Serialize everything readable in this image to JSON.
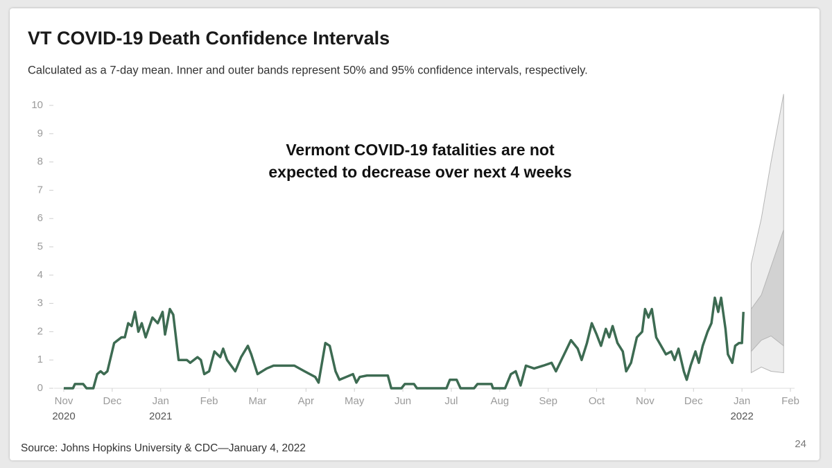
{
  "chart_data": {
    "type": "line",
    "title": "VT COVID-19 Death Confidence Intervals",
    "subtitle": "Calculated as a 7-day mean. Inner and outer bands represent 50% and 95% confidence intervals, respectively.",
    "annotation": [
      "Vermont COVID-19 fatalities are not",
      "expected to decrease over next 4 weeks"
    ],
    "source": "Source: Johns Hopkins University & CDC—January 4, 2022",
    "page_number": "24",
    "xlim": [
      0,
      15
    ],
    "xticks": [
      {
        "value": 0,
        "label": "Nov\n2020"
      },
      {
        "value": 1,
        "label": "Dec"
      },
      {
        "value": 2,
        "label": "Jan\n2021"
      },
      {
        "value": 3,
        "label": "Feb"
      },
      {
        "value": 4,
        "label": "Mar"
      },
      {
        "value": 5,
        "label": "Apr"
      },
      {
        "value": 6,
        "label": "May"
      },
      {
        "value": 7,
        "label": "Jun"
      },
      {
        "value": 8,
        "label": "Jul"
      },
      {
        "value": 9,
        "label": "Aug"
      },
      {
        "value": 10,
        "label": "Sep"
      },
      {
        "value": 11,
        "label": "Oct"
      },
      {
        "value": 12,
        "label": "Nov"
      },
      {
        "value": 13,
        "label": "Dec"
      },
      {
        "value": 14,
        "label": "Jan\n2022"
      },
      {
        "value": 15,
        "label": "Feb"
      }
    ],
    "ylim": [
      0,
      10
    ],
    "yticks": [
      0,
      1,
      2,
      3,
      4,
      5,
      6,
      7,
      8,
      9,
      10
    ],
    "grid": false,
    "x": [
      0,
      0.19,
      0.23,
      0.4,
      0.47,
      0.61,
      0.69,
      0.76,
      0.83,
      0.9,
      1.04,
      1.19,
      1.26,
      1.33,
      1.4,
      1.47,
      1.54,
      1.61,
      1.69,
      1.83,
      1.94,
      2.04,
      2.09,
      2.19,
      2.26,
      2.37,
      2.54,
      2.61,
      2.76,
      2.83,
      2.9,
      3.0,
      3.11,
      3.23,
      3.29,
      3.37,
      3.54,
      3.66,
      3.8,
      3.87,
      4.0,
      4.19,
      4.33,
      4.54,
      4.76,
      4.97,
      5.19,
      5.26,
      5.4,
      5.49,
      5.61,
      5.69,
      5.83,
      5.97,
      6.04,
      6.11,
      6.26,
      6.69,
      6.76,
      6.97,
      7.04,
      7.23,
      7.29,
      7.9,
      7.97,
      8.11,
      8.19,
      8.47,
      8.54,
      8.83,
      8.86,
      9.11,
      9.23,
      9.33,
      9.43,
      9.54,
      9.71,
      9.9,
      10.07,
      10.16,
      10.33,
      10.47,
      10.61,
      10.69,
      10.8,
      10.9,
      11.0,
      11.09,
      11.19,
      11.26,
      11.33,
      11.43,
      11.54,
      11.61,
      11.71,
      11.83,
      11.94,
      12.0,
      12.07,
      12.14,
      12.23,
      12.33,
      12.43,
      12.54,
      12.61,
      12.69,
      12.8,
      12.86,
      12.94,
      13.04,
      13.11,
      13.19,
      13.29,
      13.37,
      13.44,
      13.51,
      13.57,
      13.66,
      13.71,
      13.8,
      13.86,
      13.94,
      14.0,
      14.03
    ],
    "series": [
      {
        "color": "#3d6b52",
        "values": [
          0,
          0,
          0.15,
          0.15,
          0,
          0,
          0.5,
          0.6,
          0.5,
          0.6,
          1.6,
          1.8,
          1.8,
          2.3,
          2.2,
          2.7,
          2.0,
          2.3,
          1.8,
          2.5,
          2.3,
          2.7,
          1.9,
          2.8,
          2.6,
          1.0,
          1.0,
          0.9,
          1.1,
          1.0,
          0.5,
          0.6,
          1.3,
          1.1,
          1.4,
          1.0,
          0.6,
          1.1,
          1.5,
          1.2,
          0.5,
          0.7,
          0.8,
          0.8,
          0.8,
          0.6,
          0.4,
          0.2,
          1.6,
          1.5,
          0.6,
          0.3,
          0.4,
          0.5,
          0.2,
          0.4,
          0.45,
          0.45,
          0,
          0,
          0.15,
          0.15,
          0,
          0,
          0.3,
          0.3,
          0,
          0,
          0.15,
          0.15,
          0,
          0,
          0.5,
          0.6,
          0.1,
          0.8,
          0.7,
          0.8,
          0.9,
          0.6,
          1.2,
          1.7,
          1.4,
          1.0,
          1.6,
          2.3,
          1.9,
          1.5,
          2.1,
          1.8,
          2.2,
          1.6,
          1.3,
          0.6,
          0.9,
          1.8,
          2.0,
          2.8,
          2.5,
          2.8,
          1.8,
          1.5,
          1.2,
          1.3,
          1.0,
          1.4,
          0.6,
          0.3,
          0.8,
          1.3,
          0.9,
          1.5,
          2.0,
          2.3,
          3.2,
          2.7,
          3.2,
          2.1,
          1.2,
          0.9,
          1.5,
          1.6,
          1.6,
          2.7
        ]
      }
    ],
    "band_x": [
      14.19,
      14.4,
      14.6,
      14.86
    ],
    "bands": [
      {
        "color": "#ededed",
        "upper": [
          4.4,
          6.0,
          8.0,
          10.4
        ],
        "lower": [
          0.55,
          0.75,
          0.6,
          0.55
        ]
      },
      {
        "color": "#d2d2d2",
        "upper": [
          2.8,
          3.3,
          4.3,
          5.6
        ],
        "lower": [
          1.3,
          1.7,
          1.85,
          1.5
        ]
      }
    ]
  }
}
